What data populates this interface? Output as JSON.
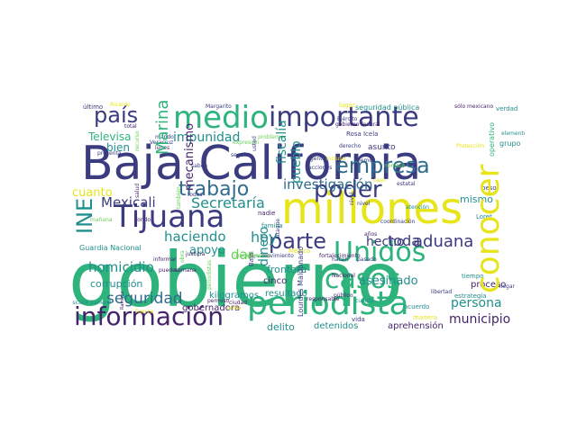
{
  "cloud": {
    "colors": {
      "navy": "#3b3b80",
      "purple": "#46246b",
      "blue": "#2f6c8e",
      "teal": "#218f8d",
      "green": "#2eb37c",
      "lime": "#6ccd5a",
      "yellow": "#e7e419"
    },
    "words": {
      "gobierno": "gobierno",
      "baja_california": "Baja California",
      "millones": "millones",
      "tijuana": "Tijuana",
      "periodista": "periodista",
      "unidos": "Unidos",
      "importante": "importante",
      "medio": "medio",
      "informacion": "información",
      "conocer": "conocer",
      "casos": "casos",
      "poder": "poder",
      "trabajo": "trabajo",
      "parte": "parte",
      "empresa": "empresa",
      "pais": "país",
      "mexicali": "Mexicali",
      "seguridad": "seguridad",
      "secretaria": "Secretaría",
      "investigacion": "investigación",
      "aduana": "aduana",
      "hecho": "hecho",
      "toda": "toda",
      "homicidio": "homicidio",
      "haciendo": "haciendo",
      "ine": "INE",
      "marina": "Marina",
      "impunidad": "impunidad",
      "hoy": "hoy",
      "dar": "dar",
      "apoyo": "apoyo",
      "cuanto": "cuanto",
      "televisa": "Televisa",
      "fiscalia": "fiscalía",
      "pueblo": "pueblo",
      "dinero": "dinero",
      "municipio": "municipio",
      "asesinado": "asesinado",
      "persona": "persona",
      "corrupcion": "corrupción",
      "bien": "bien",
      "gobernadora": "gobernadora",
      "mecanismo": "mecanismo",
      "seguridad_publica": "seguridad pública",
      "gobierno_federal": "gobierno federal",
      "guardia_nacional": "Guardia Nacional",
      "frontera": "frontera",
      "cinco": "cinco",
      "delito": "delito",
      "detenidos": "detenidos",
      "aprehension": "aprehensión",
      "resultado": "resultado",
      "kilogramos": "kilogramos",
      "proceso": "proceso",
      "mismo": "mismo",
      "lourdes_maldonado": "Lourdes Maldonado",
      "asunto": "asunto",
      "rosa_icela": "Rosa Icela",
      "loret": "Loret",
      "grupo": "grupo",
      "operativo": "operativo",
      "elementos": "elementos",
      "estrategia": "estrategia",
      "tiempo": "tiempo",
      "familia": "familia",
      "vida": "vida",
      "publico": "público",
      "anos": "años",
      "fortalecimiento": "fortalecimiento",
      "nadie": "nadie",
      "mexico": "México",
      "ultimo": "último",
      "ricardo": "Ricardo",
      "total": "total",
      "margarito": "Margarito",
      "lugar": "lugar",
      "solo_mexicano": "sólo mexicano",
      "verdad": "verdad",
      "ejercito": "Ejército",
      "veracruz": "Veracruz",
      "seguir": "seguir",
      "coordinacion": "coordinación",
      "atencion": "atención",
      "acuerdo": "acuerdo",
      "peso": "peso",
      "llegar": "llegar",
      "manera": "manera",
      "libertad": "libertad",
      "fondo": "fondo",
      "cuenta": "cuenta",
      "proteccion": "Protección",
      "fiscalia_general": "Fiscalía General",
      "gente": "gente",
      "hacen": "hacen",
      "pasado": "pasado",
      "permiso": "permiso",
      "justicia": "justicia",
      "derecho": "derecho",
      "acciones": "acciones",
      "nombre": "nombre",
      "estatal": "estatal",
      "responsable": "responsable",
      "caso": "caso",
      "nacional": "Nacional",
      "baja": "Baja",
      "inteligencia": "inteligencia",
      "informar": "informar",
      "presenta": "presenta",
      "problema": "problema",
      "expresion": "expresión",
      "ciudad": "ciudad",
      "pueden": "pueden",
      "todos": "todos",
      "saben": "saben",
      "fuerza": "Fuerza",
      "arma": "arma",
      "ramirez": "Ramírez",
      "lunes": "lunes",
      "semana": "semana",
      "hemos": "hemos",
      "ataque": "ataque",
      "momento": "momento",
      "periodistas": "periodistas",
      "mando": "mando",
      "mismo2": "mismo",
      "tambien": "también",
      "nivel": "nivel",
      "salud": "salud",
      "casa": "casa",
      "incluso": "incluso",
      "obra": "obra",
      "hecho2": "hecho",
      "manana": "mañana",
      "hay": "hay",
      "recurso": "recurso",
      "cuanto2": "cuanto",
      "usted": "usted",
      "dice": "dice",
      "estado": "estado",
      "movimiento": "movimiento",
      "seguro": "seguro",
      "sabemos": "sabemos",
      "ahora": "ahora",
      "ya": "ya",
      "dos": "dos",
      "tres": "tres"
    }
  }
}
